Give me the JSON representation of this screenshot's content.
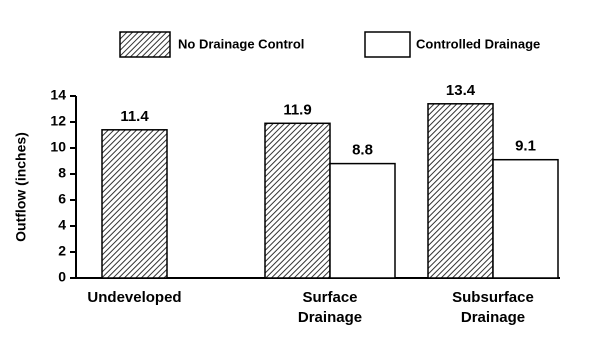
{
  "chart_data": {
    "type": "bar",
    "y_label": "Outflow (inches)",
    "categories": [
      "Undeveloped",
      "Surface Drainage",
      "Subsurface Drainage"
    ],
    "series": [
      {
        "name": "No Drainage Control",
        "color": "#333333",
        "hatch": true,
        "values": [
          11.4,
          11.9,
          13.4
        ]
      },
      {
        "name": "Controlled Drainage",
        "color": "#ffffff",
        "hatch": false,
        "values": [
          null,
          8.8,
          9.1
        ]
      }
    ],
    "ylim": [
      0,
      14
    ],
    "yticks": [
      0,
      2,
      4,
      6,
      8,
      10,
      12,
      14
    ],
    "grid": false,
    "legend": "top"
  }
}
